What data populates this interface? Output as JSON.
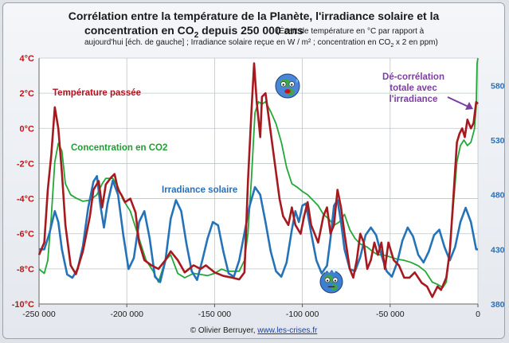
{
  "title": {
    "line1": "Corrélation entre la température de la Planète, l'irradiance solaire et la",
    "line2_main": "concentration en CO",
    "line2_sub": "2",
    "line2_rest": " depuis 250 000 ans",
    "note1": "(Écart de température en °C par rapport à",
    "note2_a": "aujourd'hui [éch. de gauche] ; Irradiance solaire reçue en W / m² ; concentration en CO",
    "note2_sub": "2",
    "note2_b": " x 2 en ppm)"
  },
  "credit": {
    "text": "© Olivier Berruyer, ",
    "link": "www.les-crises.fr"
  },
  "chart_data": {
    "type": "line",
    "x_range": [
      -250000,
      0
    ],
    "x_ticks": [
      -250000,
      -200000,
      -150000,
      -100000,
      -50000,
      0
    ],
    "x_tick_labels": [
      "-250 000",
      "-200 000",
      "-150 000",
      "-100 000",
      "-50 000",
      "0"
    ],
    "y_left_range": [
      -10,
      4
    ],
    "y_left_ticks": [
      4,
      2,
      0,
      -2,
      -4,
      -6,
      -8,
      -10
    ],
    "y_left_tick_labels": [
      "4°C",
      "2°C",
      "0°C",
      "-2°C",
      "-4°C",
      "-6°C",
      "-8°C",
      "-10°C"
    ],
    "y_right_range": [
      380,
      605
    ],
    "y_right_ticks": [
      380,
      430,
      480,
      530,
      580
    ],
    "y_right_tick_labels": [
      "380",
      "430",
      "480",
      "530",
      "580"
    ],
    "grid": true,
    "annotation": {
      "lines": [
        "Dé-corrélation",
        "totale avec",
        "l'irradiance"
      ],
      "color": "#7b3fa0"
    },
    "series": [
      {
        "name": "Température passée",
        "axis": "left",
        "color": "#a6191f",
        "label_color": "#b0141e",
        "points": [
          [
            -250000,
            -7.2
          ],
          [
            -247000,
            -6.5
          ],
          [
            -245000,
            -3.5
          ],
          [
            -243000,
            -1.5
          ],
          [
            -241000,
            1.2
          ],
          [
            -239000,
            0
          ],
          [
            -237000,
            -2.5
          ],
          [
            -235000,
            -5.5
          ],
          [
            -232000,
            -7.8
          ],
          [
            -229000,
            -8.3
          ],
          [
            -225000,
            -7
          ],
          [
            -221000,
            -5
          ],
          [
            -219000,
            -3.5
          ],
          [
            -216000,
            -3
          ],
          [
            -214000,
            -4.5
          ],
          [
            -212000,
            -3.2
          ],
          [
            -209000,
            -2.8
          ],
          [
            -207000,
            -2.6
          ],
          [
            -205000,
            -3.5
          ],
          [
            -203000,
            -3.8
          ],
          [
            -201000,
            -4.2
          ],
          [
            -198000,
            -4
          ],
          [
            -195000,
            -4.8
          ],
          [
            -193000,
            -6.5
          ],
          [
            -190000,
            -7.5
          ],
          [
            -186000,
            -7.8
          ],
          [
            -182000,
            -8
          ],
          [
            -178000,
            -7.5
          ],
          [
            -175000,
            -7
          ],
          [
            -171000,
            -7.5
          ],
          [
            -167000,
            -8.2
          ],
          [
            -162000,
            -7.8
          ],
          [
            -158000,
            -8
          ],
          [
            -155000,
            -7.8
          ],
          [
            -150000,
            -8.2
          ],
          [
            -145000,
            -8.4
          ],
          [
            -140000,
            -8.5
          ],
          [
            -136000,
            -8.6
          ],
          [
            -133000,
            -8.2
          ],
          [
            -131000,
            -3
          ],
          [
            -129000,
            1
          ],
          [
            -127500,
            3.7
          ],
          [
            -126000,
            1.5
          ],
          [
            -124000,
            -0.5
          ],
          [
            -123000,
            1.8
          ],
          [
            -121000,
            2
          ],
          [
            -119000,
            0.5
          ],
          [
            -117000,
            -1
          ],
          [
            -115000,
            -2.5
          ],
          [
            -113000,
            -4
          ],
          [
            -111000,
            -5
          ],
          [
            -108000,
            -5.5
          ],
          [
            -106000,
            -4.5
          ],
          [
            -104000,
            -5.5
          ],
          [
            -101000,
            -6
          ],
          [
            -99000,
            -5
          ],
          [
            -97000,
            -4.2
          ],
          [
            -95000,
            -5.5
          ],
          [
            -93000,
            -6
          ],
          [
            -91000,
            -6.5
          ],
          [
            -88000,
            -5
          ],
          [
            -86000,
            -4.5
          ],
          [
            -84000,
            -6
          ],
          [
            -82000,
            -5.5
          ],
          [
            -80000,
            -3.5
          ],
          [
            -78000,
            -4.5
          ],
          [
            -76000,
            -6
          ],
          [
            -73000,
            -8
          ],
          [
            -71000,
            -8.5
          ],
          [
            -69000,
            -7.5
          ],
          [
            -67000,
            -6
          ],
          [
            -65000,
            -6.5
          ],
          [
            -63000,
            -8
          ],
          [
            -61000,
            -7.5
          ],
          [
            -59000,
            -6.5
          ],
          [
            -57000,
            -7.2
          ],
          [
            -55000,
            -6.5
          ],
          [
            -53000,
            -8
          ],
          [
            -51000,
            -6.5
          ],
          [
            -48000,
            -7.5
          ],
          [
            -45000,
            -7.8
          ],
          [
            -42000,
            -8.5
          ],
          [
            -39000,
            -8.5
          ],
          [
            -36000,
            -8.2
          ],
          [
            -32000,
            -8.8
          ],
          [
            -29000,
            -9
          ],
          [
            -26000,
            -9.6
          ],
          [
            -23000,
            -9
          ],
          [
            -21000,
            -9.2
          ],
          [
            -18000,
            -8.5
          ],
          [
            -16000,
            -7
          ],
          [
            -14000,
            -4
          ],
          [
            -12000,
            -0.8
          ],
          [
            -10500,
            -0.3
          ],
          [
            -9000,
            0
          ],
          [
            -7500,
            -0.5
          ],
          [
            -6000,
            0.5
          ],
          [
            -4000,
            0
          ],
          [
            -2500,
            0.3
          ],
          [
            -1000,
            1.5
          ],
          [
            0,
            1.4
          ]
        ]
      },
      {
        "name": "Concentration en CO2",
        "axis": "right",
        "color": "#23a838",
        "label_color": "#1f9e33",
        "points": [
          [
            -250000,
            412
          ],
          [
            -247000,
            408
          ],
          [
            -245000,
            420
          ],
          [
            -243000,
            460
          ],
          [
            -241000,
            510
          ],
          [
            -239000,
            527
          ],
          [
            -237000,
            520
          ],
          [
            -235000,
            490
          ],
          [
            -232000,
            480
          ],
          [
            -229000,
            477
          ],
          [
            -225000,
            474
          ],
          [
            -221000,
            475
          ],
          [
            -217000,
            480
          ],
          [
            -214000,
            490
          ],
          [
            -212000,
            495
          ],
          [
            -208000,
            495
          ],
          [
            -205000,
            487
          ],
          [
            -202000,
            475
          ],
          [
            -198000,
            465
          ],
          [
            -195000,
            450
          ],
          [
            -192000,
            435
          ],
          [
            -189000,
            420
          ],
          [
            -185000,
            410
          ],
          [
            -182000,
            400
          ],
          [
            -178000,
            420
          ],
          [
            -175000,
            425
          ],
          [
            -171000,
            408
          ],
          [
            -167000,
            404
          ],
          [
            -162000,
            408
          ],
          [
            -158000,
            407
          ],
          [
            -154000,
            406
          ],
          [
            -150000,
            408
          ],
          [
            -146000,
            412
          ],
          [
            -143000,
            410
          ],
          [
            -140000,
            410
          ],
          [
            -136000,
            410
          ],
          [
            -133000,
            420
          ],
          [
            -131000,
            445
          ],
          [
            -129000,
            495
          ],
          [
            -127000,
            555
          ],
          [
            -125000,
            565
          ],
          [
            -123000,
            563
          ],
          [
            -121000,
            565
          ],
          [
            -118000,
            556
          ],
          [
            -115000,
            545
          ],
          [
            -112000,
            528
          ],
          [
            -109000,
            505
          ],
          [
            -106000,
            490
          ],
          [
            -103000,
            487
          ],
          [
            -100000,
            483
          ],
          [
            -97000,
            480
          ],
          [
            -94000,
            475
          ],
          [
            -91000,
            470
          ],
          [
            -88000,
            462
          ],
          [
            -85000,
            458
          ],
          [
            -82000,
            452
          ],
          [
            -79000,
            455
          ],
          [
            -76000,
            462
          ],
          [
            -73000,
            448
          ],
          [
            -70000,
            440
          ],
          [
            -67000,
            435
          ],
          [
            -63000,
            432
          ],
          [
            -60000,
            428
          ],
          [
            -57000,
            425
          ],
          [
            -54000,
            425
          ],
          [
            -50000,
            423
          ],
          [
            -46000,
            421
          ],
          [
            -42000,
            420
          ],
          [
            -38000,
            418
          ],
          [
            -34000,
            415
          ],
          [
            -30000,
            410
          ],
          [
            -26000,
            400
          ],
          [
            -23000,
            398
          ],
          [
            -20000,
            395
          ],
          [
            -18000,
            400
          ],
          [
            -16000,
            430
          ],
          [
            -14000,
            470
          ],
          [
            -12000,
            510
          ],
          [
            -10000,
            525
          ],
          [
            -8000,
            530
          ],
          [
            -6000,
            525
          ],
          [
            -4000,
            528
          ],
          [
            -2000,
            540
          ],
          [
            -1000,
            560
          ],
          [
            -500,
            600
          ],
          [
            0,
            605
          ]
        ]
      },
      {
        "name": "Irradiance solaire",
        "axis": "right",
        "color": "#2473b8",
        "label_color": "#2a6fb5",
        "points": [
          [
            -250000,
            430
          ],
          [
            -247000,
            430
          ],
          [
            -244000,
            445
          ],
          [
            -241000,
            465
          ],
          [
            -239000,
            455
          ],
          [
            -237000,
            430
          ],
          [
            -234000,
            407
          ],
          [
            -231000,
            404
          ],
          [
            -228000,
            412
          ],
          [
            -225000,
            433
          ],
          [
            -222000,
            468
          ],
          [
            -219000,
            492
          ],
          [
            -217000,
            497
          ],
          [
            -215000,
            470
          ],
          [
            -213000,
            450
          ],
          [
            -211000,
            472
          ],
          [
            -208000,
            493
          ],
          [
            -205000,
            480
          ],
          [
            -202000,
            443
          ],
          [
            -199000,
            412
          ],
          [
            -196000,
            422
          ],
          [
            -193000,
            455
          ],
          [
            -190000,
            465
          ],
          [
            -187000,
            440
          ],
          [
            -184000,
            405
          ],
          [
            -181000,
            400
          ],
          [
            -178000,
            420
          ],
          [
            -175000,
            458
          ],
          [
            -172000,
            475
          ],
          [
            -169000,
            465
          ],
          [
            -166000,
            435
          ],
          [
            -163000,
            410
          ],
          [
            -160000,
            402
          ],
          [
            -157000,
            420
          ],
          [
            -154000,
            440
          ],
          [
            -151000,
            455
          ],
          [
            -148000,
            452
          ],
          [
            -145000,
            428
          ],
          [
            -142000,
            408
          ],
          [
            -139000,
            405
          ],
          [
            -136000,
            420
          ],
          [
            -133000,
            445
          ],
          [
            -130000,
            470
          ],
          [
            -127000,
            487
          ],
          [
            -124000,
            480
          ],
          [
            -121000,
            455
          ],
          [
            -118000,
            428
          ],
          [
            -115000,
            410
          ],
          [
            -112000,
            405
          ],
          [
            -109000,
            418
          ],
          [
            -106000,
            448
          ],
          [
            -104000,
            465
          ],
          [
            -102000,
            455
          ],
          [
            -100000,
            470
          ],
          [
            -98000,
            472
          ],
          [
            -95000,
            445
          ],
          [
            -92000,
            420
          ],
          [
            -89000,
            408
          ],
          [
            -86000,
            415
          ],
          [
            -84000,
            440
          ],
          [
            -82000,
            470
          ],
          [
            -80000,
            475
          ],
          [
            -78000,
            455
          ],
          [
            -76000,
            430
          ],
          [
            -73000,
            412
          ],
          [
            -70000,
            410
          ],
          [
            -67000,
            423
          ],
          [
            -64000,
            443
          ],
          [
            -61000,
            450
          ],
          [
            -58000,
            443
          ],
          [
            -55000,
            425
          ],
          [
            -52000,
            410
          ],
          [
            -49000,
            405
          ],
          [
            -46000,
            418
          ],
          [
            -43000,
            438
          ],
          [
            -40000,
            450
          ],
          [
            -37000,
            442
          ],
          [
            -34000,
            425
          ],
          [
            -31000,
            418
          ],
          [
            -28000,
            428
          ],
          [
            -25000,
            443
          ],
          [
            -22000,
            448
          ],
          [
            -19000,
            432
          ],
          [
            -16000,
            420
          ],
          [
            -13000,
            432
          ],
          [
            -10000,
            455
          ],
          [
            -7000,
            468
          ],
          [
            -4000,
            455
          ],
          [
            -1000,
            430
          ],
          [
            0,
            430
          ]
        ]
      }
    ]
  }
}
